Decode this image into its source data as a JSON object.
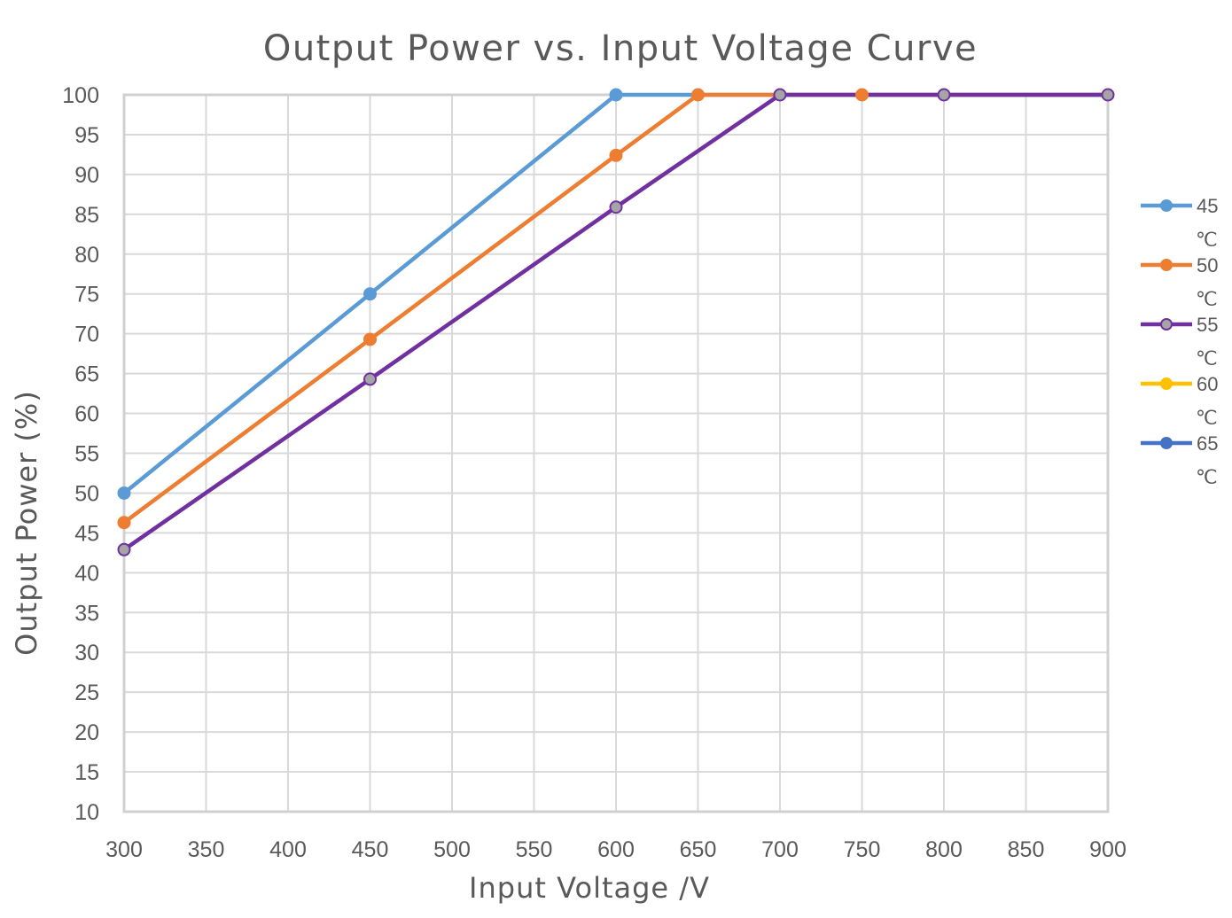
{
  "chart_data": {
    "type": "line",
    "title": "Output Power vs. Input Voltage Curve",
    "xlabel": "Input Voltage /V",
    "ylabel": "Output Power (%)",
    "xlim": [
      300,
      900
    ],
    "ylim": [
      10,
      100
    ],
    "x_ticks": [
      300,
      350,
      400,
      450,
      500,
      550,
      600,
      650,
      700,
      750,
      800,
      850,
      900
    ],
    "y_ticks": [
      10,
      15,
      20,
      25,
      30,
      35,
      40,
      45,
      50,
      55,
      60,
      65,
      70,
      75,
      80,
      85,
      90,
      95,
      100
    ],
    "grid": true,
    "legend_position": "right",
    "series": [
      {
        "name": "45",
        "unit": "℃",
        "color": "#5b9bd5",
        "marker_color": "#5b9bd5",
        "points": [
          [
            300,
            50
          ],
          [
            450,
            75
          ],
          [
            600,
            100
          ],
          [
            900,
            100
          ]
        ],
        "markers": [
          [
            300,
            50
          ],
          [
            450,
            75
          ],
          [
            600,
            100
          ]
        ]
      },
      {
        "name": "50",
        "unit": "℃",
        "color": "#ed7d31",
        "marker_color": "#ed7d31",
        "points": [
          [
            300,
            46.3
          ],
          [
            450,
            69.3
          ],
          [
            600,
            92.4
          ],
          [
            650,
            100
          ],
          [
            900,
            100
          ]
        ],
        "markers": [
          [
            300,
            46.3
          ],
          [
            450,
            69.3
          ],
          [
            600,
            92.4
          ],
          [
            650,
            100
          ],
          [
            750,
            100
          ]
        ]
      },
      {
        "name": "55",
        "unit": "℃",
        "color": "#7030a0",
        "marker_color": "#a5a5a5",
        "points": [
          [
            300,
            42.9
          ],
          [
            450,
            64.3
          ],
          [
            600,
            85.9
          ],
          [
            700,
            100
          ],
          [
            900,
            100
          ]
        ],
        "markers": [
          [
            300,
            42.9
          ],
          [
            450,
            64.3
          ],
          [
            600,
            85.9
          ],
          [
            700,
            100
          ],
          [
            800,
            100
          ],
          [
            900,
            100
          ]
        ]
      },
      {
        "name": "60",
        "unit": "℃",
        "color": "#ffc000",
        "marker_color": "#ffc000",
        "points": [],
        "markers": []
      },
      {
        "name": "65",
        "unit": "℃",
        "color": "#4472c4",
        "marker_color": "#4472c4",
        "points": [],
        "markers": []
      }
    ]
  }
}
